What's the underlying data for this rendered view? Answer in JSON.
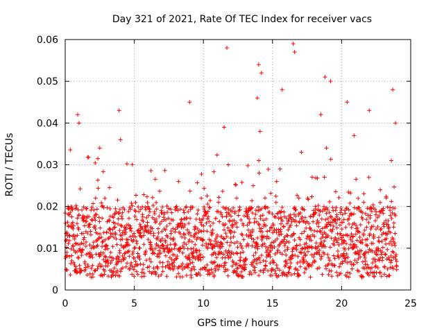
{
  "chart_data": {
    "type": "scatter",
    "title": "Day 321 of 2021, Rate Of TEC Index for receiver vacs",
    "xlabel": "GPS time / hours",
    "ylabel": "ROTI / TECUs",
    "xlim": [
      0,
      25
    ],
    "ylim": [
      0,
      0.06
    ],
    "xticks": [
      0,
      5,
      10,
      15,
      20,
      25
    ],
    "xtick_labels": [
      "0",
      "5",
      "10",
      "15",
      "20",
      "25"
    ],
    "yticks": [
      0,
      0.01,
      0.02,
      0.03,
      0.04,
      0.05,
      0.06
    ],
    "ytick_labels": [
      "0",
      "0.01",
      "0.02",
      "0.03",
      "0.04",
      "0.05",
      "0.06"
    ],
    "grid": true,
    "marker": "plus",
    "color": "#ff0000",
    "series": [
      {
        "x": [
          0.1,
          0.3,
          0.5,
          0.8,
          0.9,
          1.0,
          1.0,
          1.2,
          1.5,
          1.9,
          2.2,
          2.5,
          2.9,
          3.3,
          3.6,
          3.9,
          4.0,
          4.1,
          4.5,
          5.0,
          5.4,
          5.8,
          6.2,
          6.6,
          7.0,
          7.4,
          7.8,
          8.2,
          8.6,
          9.0,
          9.1,
          9.5,
          9.9,
          10.3,
          10.7,
          11.1,
          11.5,
          11.7,
          11.8,
          12.0,
          12.4,
          12.8,
          13.2,
          13.6,
          13.9,
          14.0,
          14.1,
          14.2,
          14.5,
          14.9,
          15.3,
          15.7,
          16.1,
          16.3,
          16.5,
          16.6,
          16.9,
          17.3,
          17.7,
          18.1,
          18.5,
          18.8,
          18.9,
          19.2,
          19.6,
          20.0,
          20.4,
          20.8,
          20.9,
          21.2,
          21.6,
          22.0,
          22.4,
          22.8,
          23.2,
          23.6,
          23.7,
          23.9
        ],
        "y": [
          0.012,
          0.008,
          0.015,
          0.011,
          0.042,
          0.04,
          0.018,
          0.009,
          0.014,
          0.01,
          0.022,
          0.034,
          0.012,
          0.009,
          0.016,
          0.043,
          0.036,
          0.013,
          0.011,
          0.01,
          0.013,
          0.009,
          0.015,
          0.011,
          0.014,
          0.01,
          0.012,
          0.026,
          0.01,
          0.045,
          0.013,
          0.009,
          0.012,
          0.01,
          0.016,
          0.021,
          0.039,
          0.058,
          0.03,
          0.014,
          0.022,
          0.01,
          0.018,
          0.025,
          0.046,
          0.054,
          0.038,
          0.052,
          0.02,
          0.015,
          0.026,
          0.048,
          0.013,
          0.018,
          0.059,
          0.057,
          0.022,
          0.014,
          0.012,
          0.02,
          0.042,
          0.051,
          0.034,
          0.05,
          0.016,
          0.012,
          0.045,
          0.01,
          0.037,
          0.014,
          0.021,
          0.043,
          0.009,
          0.024,
          0.011,
          0.031,
          0.048,
          0.04
        ],
        "dense_band": {
          "x_start": 0,
          "x_end": 24,
          "y_floor": 0.003,
          "y_typical_top": 0.02,
          "note_values": [
            0.005,
            0.008,
            0.01,
            0.012,
            0.015,
            0.018,
            0.02
          ]
        }
      }
    ]
  }
}
